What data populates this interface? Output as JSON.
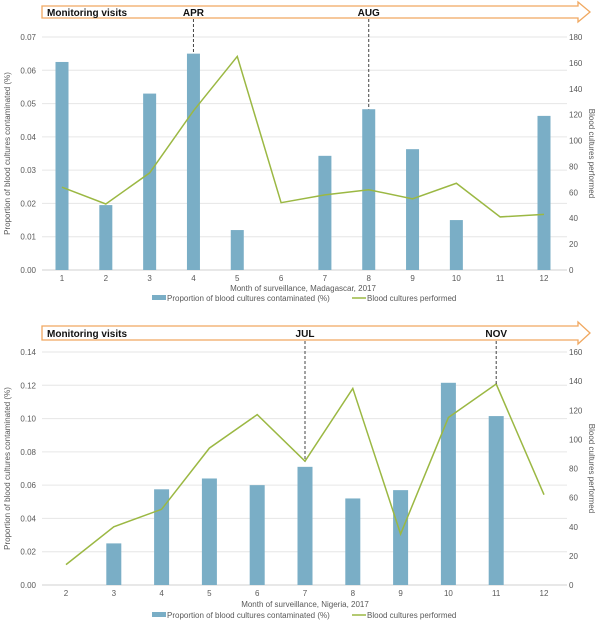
{
  "colors": {
    "bar": "#7aaec6",
    "line": "#9bb843",
    "banner": "#f0a860",
    "grid": "#e6e6e6",
    "axis_text": "#595959"
  },
  "chart_data": [
    {
      "type": "bar+line",
      "banner": {
        "label": "Monitoring visits",
        "visits": [
          {
            "label": "APR",
            "month": 4
          },
          {
            "label": "AUG",
            "month": 8
          }
        ]
      },
      "categories": [
        "1",
        "2",
        "3",
        "4",
        "5",
        "6",
        "7",
        "8",
        "9",
        "10",
        "11",
        "12"
      ],
      "xlabel": "Month of surveillance, Madagascar, 2017",
      "ylabel": "Proportion of blood cultures contaminated (%)",
      "y2label": "Blood cultures performed",
      "ylim": [
        0,
        0.07
      ],
      "yticks": [
        "0.00",
        "0.01",
        "0.02",
        "0.03",
        "0.04",
        "0.05",
        "0.06",
        "0.07"
      ],
      "y2lim": [
        0,
        180
      ],
      "y2ticks": [
        "0",
        "20",
        "40",
        "60",
        "80",
        "100",
        "120",
        "140",
        "160",
        "180"
      ],
      "series": [
        {
          "name": "Proportion of blood cultures contaminated (%)",
          "kind": "bar",
          "values": [
            0.0625,
            0.0195,
            0.053,
            0.065,
            0.012,
            0,
            0.0343,
            0.0483,
            0.0363,
            0.015,
            0,
            0.0463
          ]
        },
        {
          "name": "Blood cultures performed",
          "kind": "line",
          "values": [
            64,
            51,
            75,
            123,
            165,
            52,
            58,
            62,
            55,
            67,
            41,
            43
          ]
        }
      ],
      "legend": "bottom"
    },
    {
      "type": "bar+line",
      "banner": {
        "label": "Monitoring visits",
        "visits": [
          {
            "label": "JUL",
            "month": 7
          },
          {
            "label": "NOV",
            "month": 11
          }
        ]
      },
      "categories": [
        "2",
        "3",
        "4",
        "5",
        "6",
        "7",
        "8",
        "9",
        "10",
        "11",
        "12"
      ],
      "xlabel": "Month of surveillance, Nigeria, 2017",
      "ylabel": "Proportion of blood cultures contaminated (%)",
      "y2label": "Blood cultures performed",
      "ylim": [
        0,
        0.14
      ],
      "yticks": [
        "0.00",
        "0.02",
        "0.04",
        "0.06",
        "0.08",
        "0.10",
        "0.12",
        "0.14"
      ],
      "y2lim": [
        0,
        160
      ],
      "y2ticks": [
        "0",
        "20",
        "40",
        "60",
        "80",
        "100",
        "120",
        "140",
        "160"
      ],
      "series": [
        {
          "name": "Proportion of blood cultures contaminated (%)",
          "kind": "bar",
          "values": [
            0,
            0.025,
            0.0575,
            0.064,
            0.06,
            0.071,
            0.052,
            0.057,
            0.1215,
            0.1015,
            0
          ]
        },
        {
          "name": "Blood cultures performed",
          "kind": "line",
          "values": [
            14,
            40,
            52,
            94,
            117,
            85,
            135,
            35,
            115,
            138,
            62
          ]
        }
      ],
      "legend": "bottom"
    }
  ]
}
